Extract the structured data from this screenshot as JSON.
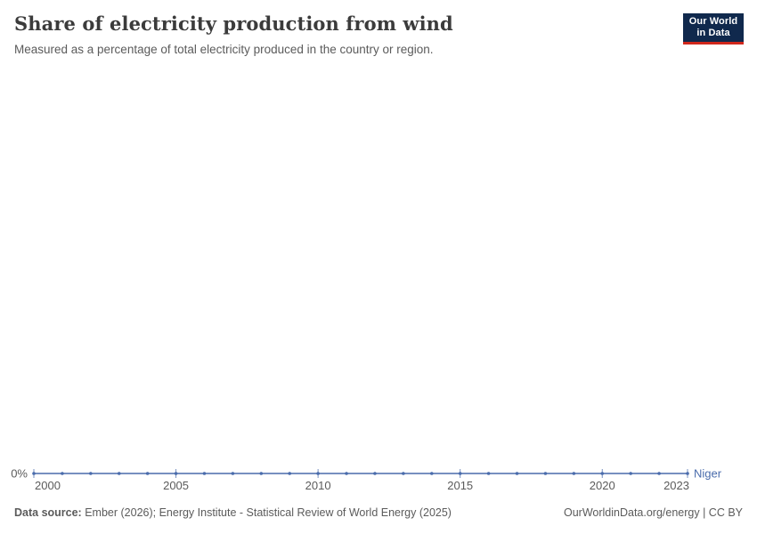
{
  "header": {
    "title": "Share of electricity production from wind",
    "subtitle": "Measured as a percentage of total electricity produced in the country or region.",
    "logo": {
      "line1": "Our World",
      "line2": "in Data",
      "bg_color": "#10294d",
      "accent_color": "#d0271c"
    }
  },
  "chart_data": {
    "type": "line",
    "title": "Share of electricity production from wind",
    "unit": "%",
    "x": [
      2000,
      2001,
      2002,
      2003,
      2004,
      2005,
      2006,
      2007,
      2008,
      2009,
      2010,
      2011,
      2012,
      2013,
      2014,
      2015,
      2016,
      2017,
      2018,
      2019,
      2020,
      2021,
      2022,
      2023
    ],
    "series": [
      {
        "name": "Niger",
        "color": "#4a6cac",
        "values": [
          0,
          0,
          0,
          0,
          0,
          0,
          0,
          0,
          0,
          0,
          0,
          0,
          0,
          0,
          0,
          0,
          0,
          0,
          0,
          0,
          0,
          0,
          0,
          0
        ]
      }
    ],
    "x_ticks": [
      2000,
      2005,
      2010,
      2015,
      2020,
      2023
    ],
    "x_tick_labels": [
      "2000",
      "2005",
      "2010",
      "2015",
      "2020",
      "2023"
    ],
    "y_tick_labels": [
      "0%"
    ],
    "xlim": [
      2000,
      2023
    ],
    "ylim": [
      0,
      1
    ],
    "grid": false,
    "legend_position": "end-of-line",
    "axis_text_color": "#5b5b5b"
  },
  "footer": {
    "source_label": "Data source:",
    "source_text": " Ember (2026); Energy Institute - Statistical Review of World Energy (2025)",
    "rights": "OurWorldinData.org/energy | CC BY"
  }
}
